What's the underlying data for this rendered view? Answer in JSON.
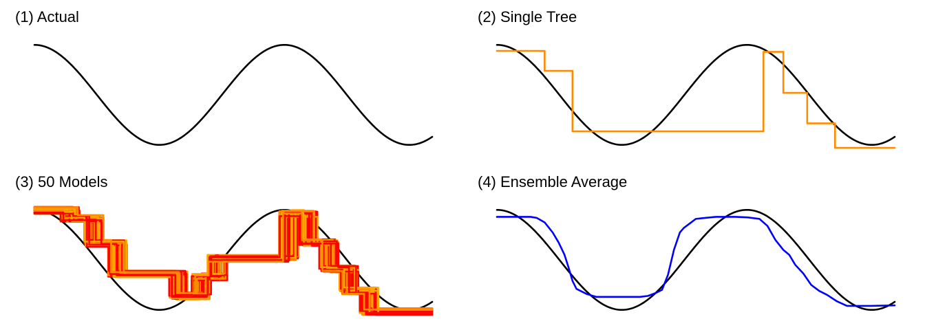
{
  "chart_data": [
    {
      "type": "line",
      "title": "(1) Actual",
      "xlim": [
        0,
        10
      ],
      "ylim": [
        -1.1,
        1.1
      ],
      "axes_visible": false,
      "grid": false,
      "legend": "none",
      "series": [
        {
          "kind": "function",
          "func": "cos",
          "x_range": [
            0,
            10
          ],
          "samples": 400,
          "color": "#000000"
        }
      ]
    },
    {
      "type": "line",
      "title": "(2) Single Tree",
      "xlim": [
        0,
        10
      ],
      "ylim": [
        -1.1,
        1.1
      ],
      "axes_visible": false,
      "grid": false,
      "legend": "none",
      "series": [
        {
          "kind": "function",
          "func": "cos",
          "x_range": [
            0,
            10
          ],
          "samples": 400,
          "color": "#000000"
        },
        {
          "kind": "step",
          "color": "#FF8C00",
          "breaks": [
            0,
            1.2,
            1.9,
            4.3,
            6.7,
            7.2,
            7.8,
            8.5,
            10
          ],
          "values": [
            0.88,
            0.48,
            -0.73,
            -0.73,
            0.86,
            0.04,
            -0.57,
            -1.06
          ]
        }
      ]
    },
    {
      "type": "line",
      "title": "(3) 50 Models",
      "xlim": [
        0,
        10
      ],
      "ylim": [
        -1.1,
        1.1
      ],
      "axes_visible": false,
      "grid": false,
      "legend": "none",
      "series": [
        {
          "kind": "function",
          "func": "cos",
          "x_range": [
            0,
            10
          ],
          "samples": 400,
          "color": "#000000"
        },
        {
          "kind": "step-ensemble",
          "count": 50,
          "colors": [
            "#FF0000",
            "#FF8C00",
            "#FFA500",
            "#EE1100"
          ],
          "breaks": [
            0,
            0.9,
            1.5,
            2.1,
            3.6,
            4.2,
            4.6,
            6.4,
            6.9,
            7.4,
            7.9,
            8.4,
            10
          ],
          "values": [
            0.99,
            0.83,
            0.33,
            -0.28,
            -0.72,
            -0.34,
            0.03,
            0.93,
            0.35,
            -0.18,
            -0.62,
            -1.03
          ]
        }
      ]
    },
    {
      "type": "line",
      "title": "(4) Ensemble Average",
      "xlim": [
        0,
        10
      ],
      "ylim": [
        -1.1,
        1.1
      ],
      "axes_visible": false,
      "grid": false,
      "legend": "none",
      "series": [
        {
          "kind": "function",
          "func": "cos",
          "x_range": [
            0,
            10
          ],
          "samples": 400,
          "color": "#000000"
        },
        {
          "kind": "polyline",
          "color": "#0000FF",
          "x": [
            0,
            0.85,
            1.0,
            1.2,
            1.4,
            1.55,
            1.7,
            1.8,
            1.9,
            2.0,
            2.25,
            2.5,
            3.0,
            3.6,
            3.8,
            4.0,
            4.15,
            4.3,
            4.45,
            4.6,
            4.7,
            4.85,
            5.0,
            5.5,
            6.0,
            6.3,
            6.6,
            6.8,
            7.0,
            7.2,
            7.35,
            7.5,
            7.7,
            7.9,
            8.1,
            8.3,
            8.55,
            8.8,
            9.4,
            10
          ],
          "y": [
            0.86,
            0.86,
            0.84,
            0.75,
            0.55,
            0.35,
            0.1,
            -0.15,
            -0.42,
            -0.58,
            -0.68,
            -0.74,
            -0.74,
            -0.74,
            -0.72,
            -0.66,
            -0.6,
            -0.3,
            0.2,
            0.55,
            0.64,
            0.73,
            0.82,
            0.86,
            0.86,
            0.85,
            0.82,
            0.68,
            0.4,
            0.2,
            0.1,
            -0.1,
            -0.27,
            -0.5,
            -0.62,
            -0.7,
            -0.83,
            -0.92,
            -0.92,
            -0.91
          ]
        }
      ]
    }
  ]
}
